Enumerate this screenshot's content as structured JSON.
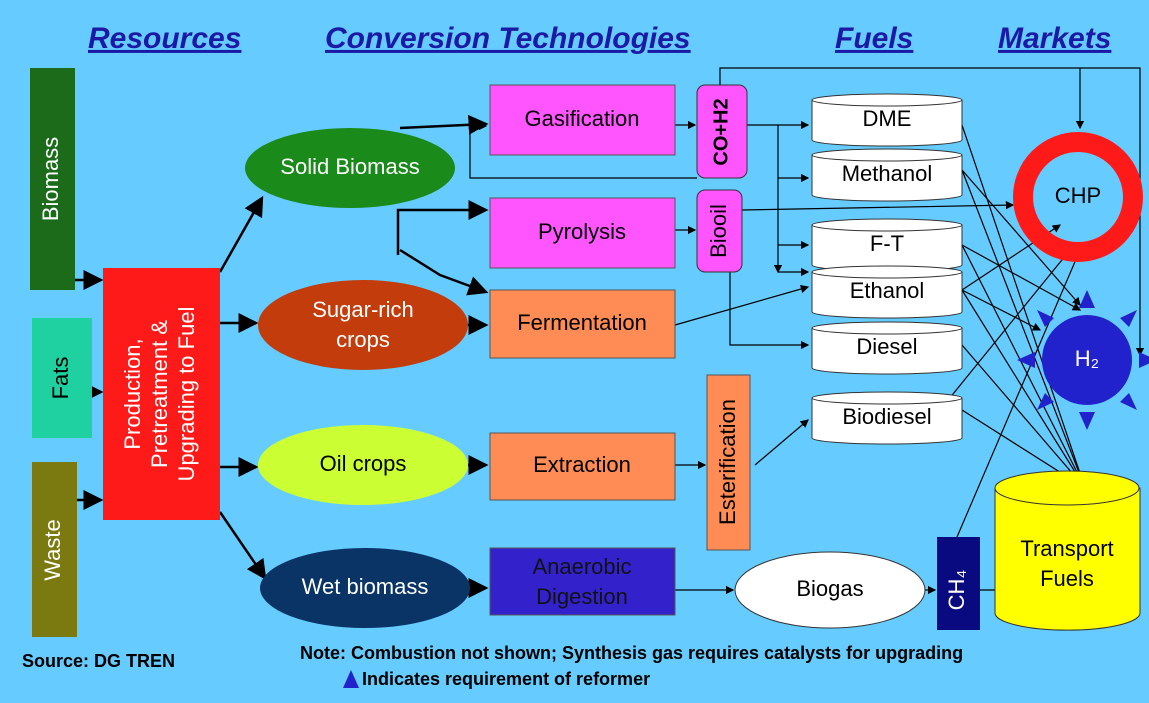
{
  "header": {
    "resources": "Resources",
    "conversion": "Conversion Technologies",
    "fuels": "Fuels",
    "markets": "Markets"
  },
  "resources": {
    "biomass": "Biomass",
    "fats": "Fats",
    "waste": "Waste"
  },
  "production": {
    "lines": [
      "Production,",
      "Pretreatment &",
      "Upgrading to Fuel"
    ]
  },
  "feedstocks": {
    "solid": "Solid Biomass",
    "sugar": [
      "Sugar-rich",
      "crops"
    ],
    "oil": "Oil crops",
    "wet": "Wet biomass"
  },
  "technologies": {
    "gasification": "Gasification",
    "pyrolysis": "Pyrolysis",
    "fermentation": "Fermentation",
    "extraction": "Extraction",
    "anaerobic": [
      "Anaerobic",
      "Digestion"
    ],
    "cog": "CO+H2",
    "biooil": "Biooil",
    "esterification": "Esterification"
  },
  "fuels": {
    "dme": "DME",
    "methanol": "Methanol",
    "ft": "F-T",
    "ethanol": "Ethanol",
    "diesel": "Diesel",
    "biodiesel": "Biodiesel",
    "biogas": "Biogas",
    "ch4": "CH₄"
  },
  "markets": {
    "chp": "CHP",
    "h2": "H₂",
    "transport": [
      "Transport",
      "Fuels"
    ]
  },
  "footer": {
    "source": "Source: DG TREN",
    "note": "Note:  Combustion not shown; Synthesis gas requires catalysts for upgrading",
    "reformer": "Indicates requirement of reformer"
  }
}
